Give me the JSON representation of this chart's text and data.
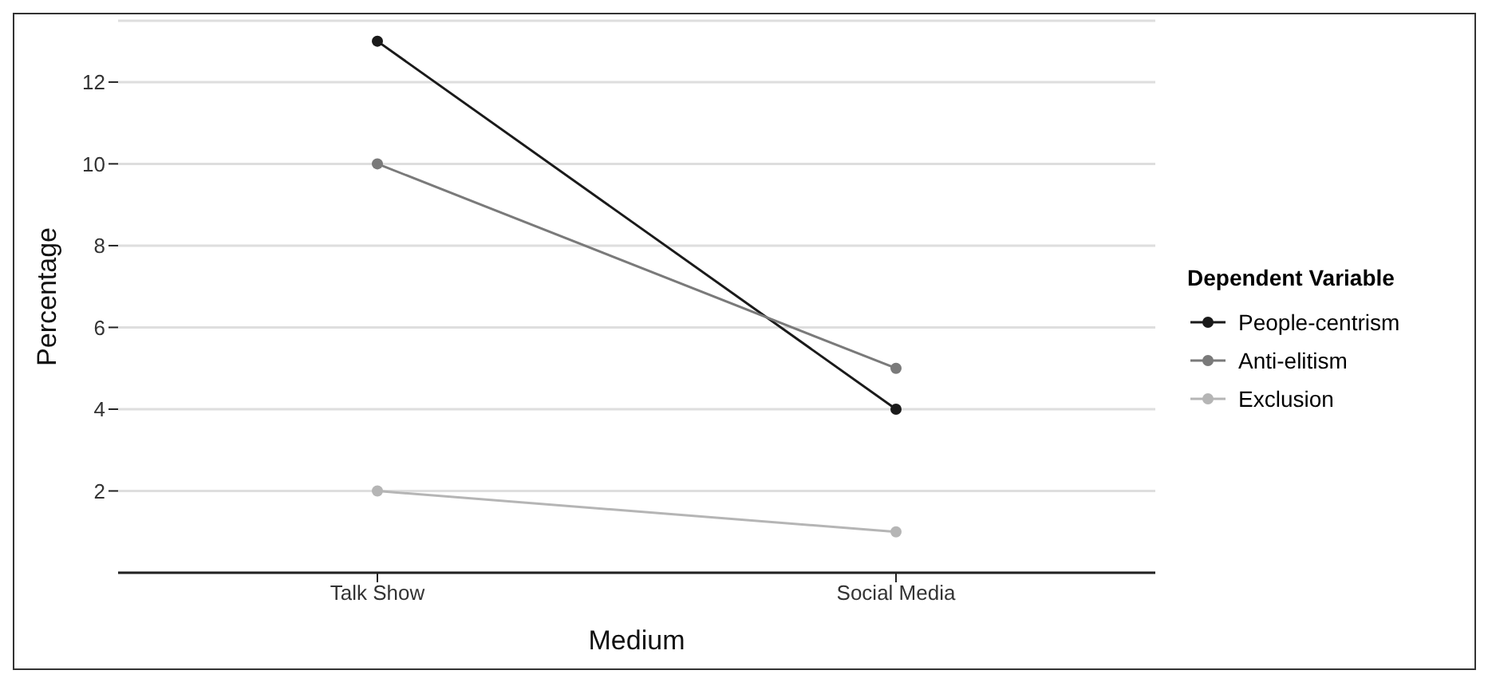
{
  "chart_data": {
    "type": "line",
    "xlabel": "Medium",
    "ylabel": "Percentage",
    "legend_title": "Dependent Variable",
    "categories": [
      "Talk Show",
      "Social Media"
    ],
    "series": [
      {
        "name": "People-centrism",
        "color": "#1a1a1a",
        "values": [
          13,
          4
        ]
      },
      {
        "name": "Anti-elitism",
        "color": "#7a7a7a",
        "values": [
          10,
          5
        ]
      },
      {
        "name": "Exclusion",
        "color": "#b5b5b5",
        "values": [
          2,
          1
        ]
      }
    ],
    "ylim": [
      0,
      13.5
    ],
    "yticks": [
      2,
      4,
      6,
      8,
      10,
      12
    ],
    "grid": "y",
    "legend": "right",
    "marker": "circle",
    "line_style": "solid"
  }
}
